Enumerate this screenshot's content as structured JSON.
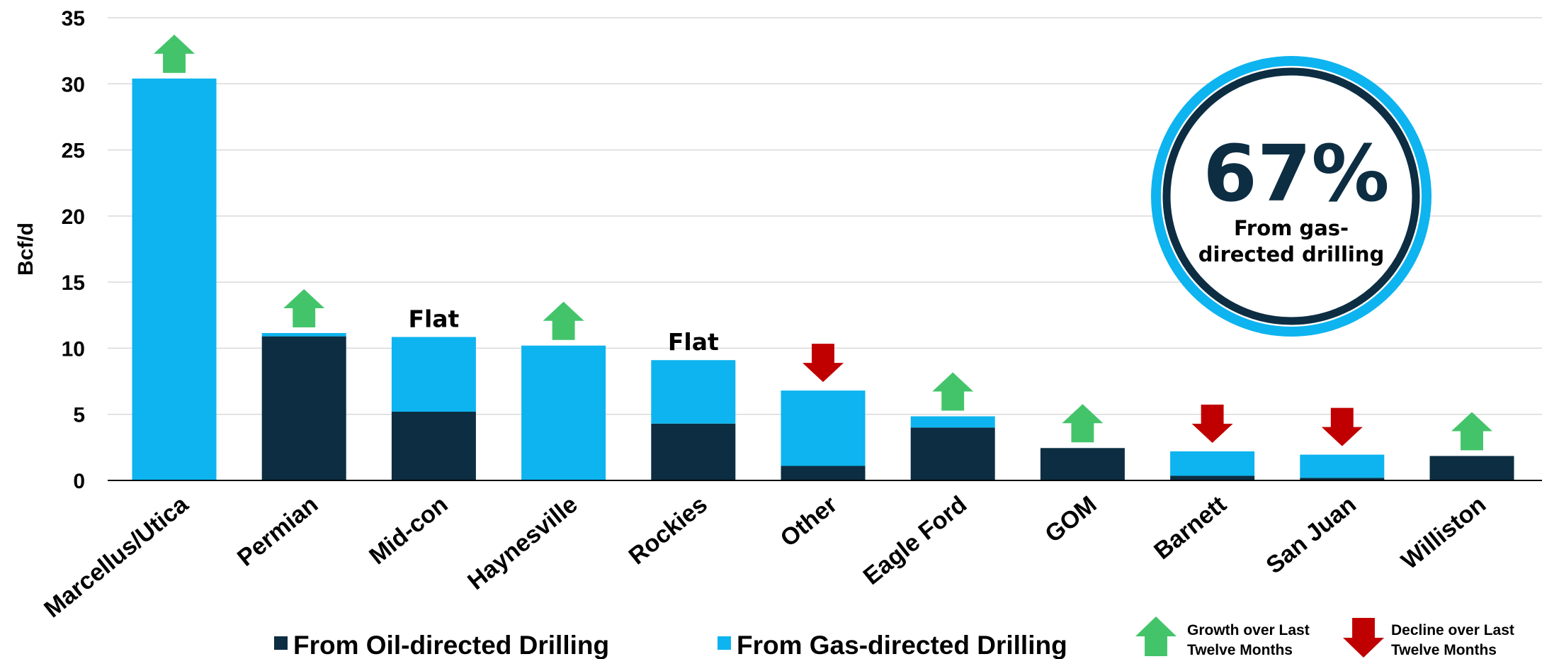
{
  "colors": {
    "oil": "#0d2d42",
    "gas": "#0db4ef",
    "growth": "#44c46a",
    "decline": "#c00000",
    "grid": "#d9d9d9",
    "badge_ring_outer": "#0db4ef",
    "badge_ring_inner": "#0d2d42",
    "badge_text": "#0d2d42"
  },
  "chart_data": {
    "type": "bar",
    "stacked": true,
    "ylabel": "Bcf/d",
    "ylim": [
      0,
      35
    ],
    "yticks": [
      0,
      5,
      10,
      15,
      20,
      25,
      30,
      35
    ],
    "grid": true,
    "categories": [
      "Marcellus/Utica",
      "Permian",
      "Mid-con",
      "Haynesville",
      "Rockies",
      "Other",
      "Eagle Ford",
      "GOM",
      "Barnett",
      "San Juan",
      "Williston"
    ],
    "series": [
      {
        "name": "From Oil-directed Drilling",
        "color_key": "oil",
        "values": [
          0,
          10.9,
          5.2,
          0,
          4.3,
          1.1,
          4.0,
          2.45,
          0.35,
          0.2,
          1.85
        ]
      },
      {
        "name": "From Gas-directed Drilling",
        "color_key": "gas",
        "values": [
          30.4,
          0.25,
          5.65,
          10.2,
          4.8,
          5.7,
          0.85,
          0,
          1.85,
          1.75,
          0
        ]
      }
    ],
    "trend": [
      "growth",
      "growth",
      "flat",
      "growth",
      "flat",
      "decline",
      "growth",
      "growth",
      "decline",
      "decline",
      "growth"
    ],
    "flat_label": "Flat",
    "legend": {
      "placement": "bottom",
      "series": [
        "From Oil-directed Drilling",
        "From Gas-directed Drilling"
      ],
      "growth": [
        "Growth over Last",
        "Twelve Months"
      ],
      "decline": [
        "Decline over Last",
        "Twelve Months"
      ]
    }
  },
  "badge": {
    "value": "67%",
    "caption_lines": [
      "From gas-",
      "directed drilling"
    ]
  }
}
